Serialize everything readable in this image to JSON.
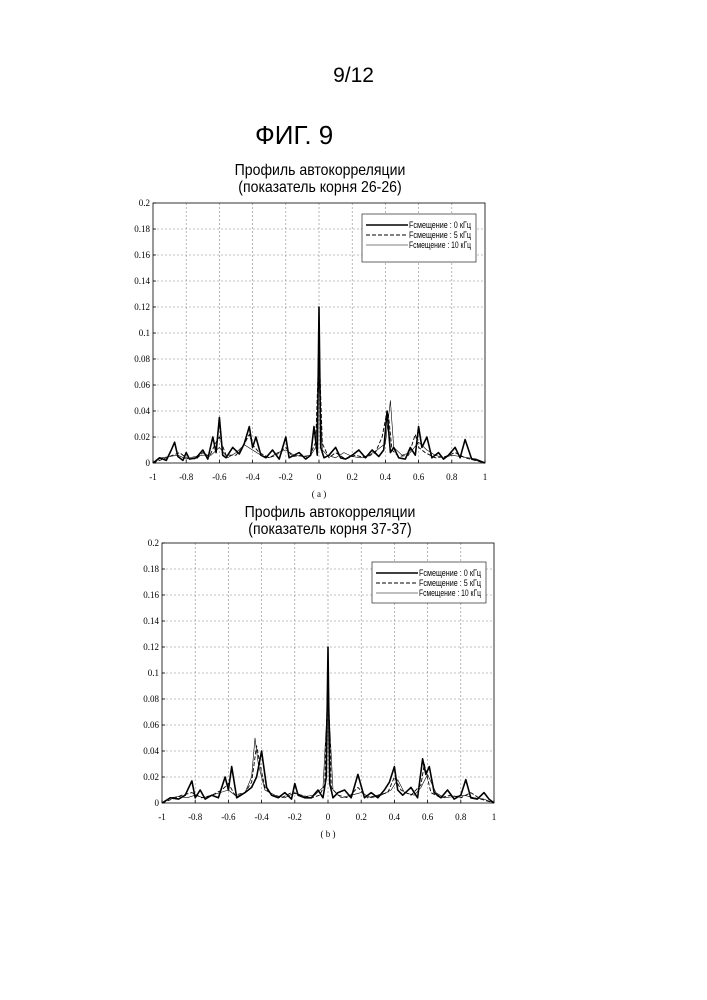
{
  "page": {
    "number": "9/12",
    "figure": "ФИГ. 9"
  },
  "chart_data": [
    {
      "type": "line",
      "title": "Профиль автокорреляции",
      "subtitle": "(показатель корня 26-26)",
      "panel_label": "( a )",
      "xlim": [
        -1,
        1
      ],
      "ylim": [
        0,
        0.2
      ],
      "x_ticks": [
        "-1",
        "-0.8",
        "-0.6",
        "-0.4",
        "-0.2",
        "0",
        "0.2",
        "0.4",
        "0.6",
        "0.8",
        "1"
      ],
      "y_ticks": [
        "0",
        "0.02",
        "0.04",
        "0.06",
        "0.08",
        "0.1",
        "0.12",
        "0.14",
        "0.16",
        "0.18",
        "0.2"
      ],
      "grid": true,
      "legend_position": "top-right",
      "series": [
        {
          "name": "Fсмещение : 0 кГц",
          "style": "solid-thick",
          "x": [
            -1,
            -0.96,
            -0.92,
            -0.89,
            -0.87,
            -0.85,
            -0.82,
            -0.8,
            -0.78,
            -0.74,
            -0.7,
            -0.67,
            -0.64,
            -0.62,
            -0.6,
            -0.58,
            -0.56,
            -0.52,
            -0.48,
            -0.45,
            -0.42,
            -0.4,
            -0.38,
            -0.35,
            -0.32,
            -0.28,
            -0.24,
            -0.2,
            -0.18,
            -0.15,
            -0.12,
            -0.08,
            -0.05,
            -0.03,
            -0.01,
            0,
            0.01,
            0.03,
            0.06,
            0.1,
            0.13,
            0.16,
            0.2,
            0.24,
            0.28,
            0.32,
            0.36,
            0.39,
            0.41,
            0.43,
            0.45,
            0.48,
            0.52,
            0.55,
            0.58,
            0.6,
            0.62,
            0.65,
            0.68,
            0.72,
            0.75,
            0.78,
            0.82,
            0.85,
            0.88,
            0.92,
            0.96,
            1
          ],
          "y": [
            0,
            0.004,
            0.002,
            0.01,
            0.016,
            0.005,
            0.002,
            0.008,
            0.003,
            0.004,
            0.01,
            0.003,
            0.02,
            0.008,
            0.035,
            0.006,
            0.004,
            0.012,
            0.007,
            0.015,
            0.028,
            0.012,
            0.02,
            0.006,
            0.004,
            0.01,
            0.003,
            0.02,
            0.004,
            0.006,
            0.008,
            0.003,
            0.006,
            0.028,
            0.006,
            0.12,
            0.012,
            0.004,
            0.006,
            0.012,
            0.004,
            0.003,
            0.006,
            0.01,
            0.004,
            0.01,
            0.005,
            0.01,
            0.04,
            0.008,
            0.012,
            0.004,
            0.003,
            0.012,
            0.006,
            0.028,
            0.012,
            0.02,
            0.004,
            0.008,
            0.003,
            0.006,
            0.012,
            0.004,
            0.018,
            0.003,
            0.002,
            0
          ]
        },
        {
          "name": "Fсмещение : 5 кГц",
          "style": "dashed",
          "x": [
            -1,
            -0.94,
            -0.88,
            -0.84,
            -0.8,
            -0.74,
            -0.7,
            -0.66,
            -0.62,
            -0.6,
            -0.56,
            -0.5,
            -0.46,
            -0.42,
            -0.4,
            -0.36,
            -0.3,
            -0.26,
            -0.2,
            -0.16,
            -0.1,
            -0.06,
            -0.02,
            0,
            0.02,
            0.06,
            0.1,
            0.16,
            0.22,
            0.28,
            0.34,
            0.38,
            0.41,
            0.42,
            0.44,
            0.48,
            0.54,
            0.58,
            0.6,
            0.64,
            0.7,
            0.76,
            0.82,
            0.88,
            0.94,
            1
          ],
          "y": [
            0,
            0.003,
            0.006,
            0.008,
            0.004,
            0.003,
            0.008,
            0.005,
            0.016,
            0.02,
            0.006,
            0.006,
            0.012,
            0.022,
            0.014,
            0.008,
            0.004,
            0.006,
            0.012,
            0.005,
            0.006,
            0.004,
            0.016,
            0.09,
            0.015,
            0.004,
            0.008,
            0.003,
            0.006,
            0.004,
            0.008,
            0.02,
            0.04,
            0.035,
            0.01,
            0.005,
            0.006,
            0.022,
            0.012,
            0.008,
            0.004,
            0.005,
            0.008,
            0.004,
            0.002,
            0
          ]
        },
        {
          "name": "Fсмещение : 10 кГц",
          "style": "solid-thin",
          "x": [
            -1,
            -0.95,
            -0.9,
            -0.85,
            -0.8,
            -0.75,
            -0.7,
            -0.65,
            -0.6,
            -0.55,
            -0.5,
            -0.45,
            -0.4,
            -0.35,
            -0.3,
            -0.25,
            -0.2,
            -0.15,
            -0.1,
            -0.05,
            -0.02,
            0,
            0.02,
            0.05,
            0.1,
            0.15,
            0.2,
            0.25,
            0.3,
            0.35,
            0.4,
            0.43,
            0.45,
            0.5,
            0.55,
            0.6,
            0.65,
            0.7,
            0.75,
            0.8,
            0.85,
            0.9,
            0.95,
            1
          ],
          "y": [
            0,
            0.004,
            0.005,
            0.006,
            0.003,
            0.005,
            0.006,
            0.006,
            0.012,
            0.004,
            0.008,
            0.014,
            0.01,
            0.006,
            0.004,
            0.008,
            0.01,
            0.006,
            0.005,
            0.006,
            0.012,
            0.065,
            0.01,
            0.006,
            0.004,
            0.008,
            0.005,
            0.004,
            0.006,
            0.01,
            0.015,
            0.048,
            0.012,
            0.006,
            0.008,
            0.016,
            0.01,
            0.006,
            0.004,
            0.006,
            0.005,
            0.004,
            0.003,
            0
          ]
        }
      ]
    },
    {
      "type": "line",
      "title": "Профиль автокорреляции",
      "subtitle": "(показатель корня 37-37)",
      "panel_label": "( b )",
      "xlim": [
        -1,
        1
      ],
      "ylim": [
        0,
        0.2
      ],
      "x_ticks": [
        "-1",
        "-0.8",
        "-0.6",
        "-0.4",
        "-0.2",
        "0",
        "0.2",
        "0.4",
        "0.6",
        "0.8",
        "1"
      ],
      "y_ticks": [
        "0",
        "0.02",
        "0.04",
        "0.06",
        "0.08",
        "0.1",
        "0.12",
        "0.14",
        "0.16",
        "0.18",
        "0.2"
      ],
      "grid": true,
      "legend_position": "top-right",
      "series": [
        {
          "name": "Fсмещение : 0 кГц",
          "style": "solid-thick",
          "x": [
            -1,
            -0.95,
            -0.9,
            -0.86,
            -0.82,
            -0.8,
            -0.77,
            -0.74,
            -0.7,
            -0.66,
            -0.62,
            -0.6,
            -0.58,
            -0.55,
            -0.5,
            -0.46,
            -0.43,
            -0.4,
            -0.37,
            -0.34,
            -0.3,
            -0.26,
            -0.22,
            -0.2,
            -0.18,
            -0.14,
            -0.1,
            -0.06,
            -0.03,
            -0.01,
            0,
            0.01,
            0.03,
            0.06,
            0.1,
            0.14,
            0.18,
            0.22,
            0.26,
            0.3,
            0.34,
            0.37,
            0.4,
            0.42,
            0.45,
            0.5,
            0.54,
            0.57,
            0.59,
            0.61,
            0.64,
            0.68,
            0.72,
            0.76,
            0.8,
            0.83,
            0.86,
            0.9,
            0.94,
            0.97,
            1
          ],
          "y": [
            0,
            0.004,
            0.003,
            0.006,
            0.017,
            0.004,
            0.01,
            0.003,
            0.006,
            0.004,
            0.02,
            0.01,
            0.028,
            0.004,
            0.008,
            0.012,
            0.02,
            0.04,
            0.012,
            0.006,
            0.004,
            0.008,
            0.003,
            0.015,
            0.006,
            0.004,
            0.004,
            0.01,
            0.004,
            0.02,
            0.12,
            0.015,
            0.004,
            0.008,
            0.01,
            0.004,
            0.022,
            0.004,
            0.008,
            0.004,
            0.01,
            0.016,
            0.028,
            0.01,
            0.006,
            0.012,
            0.004,
            0.034,
            0.022,
            0.028,
            0.008,
            0.004,
            0.01,
            0.003,
            0.006,
            0.018,
            0.004,
            0.003,
            0.008,
            0.003,
            0
          ]
        },
        {
          "name": "Fсмещение : 5 кГц",
          "style": "dashed",
          "x": [
            -1,
            -0.94,
            -0.88,
            -0.82,
            -0.76,
            -0.7,
            -0.64,
            -0.6,
            -0.56,
            -0.5,
            -0.46,
            -0.43,
            -0.41,
            -0.38,
            -0.34,
            -0.28,
            -0.22,
            -0.16,
            -0.1,
            -0.05,
            -0.02,
            0,
            0.02,
            0.06,
            0.12,
            0.18,
            0.24,
            0.3,
            0.36,
            0.4,
            0.44,
            0.5,
            0.56,
            0.58,
            0.62,
            0.68,
            0.74,
            0.8,
            0.86,
            0.92,
            1
          ],
          "y": [
            0,
            0.003,
            0.006,
            0.008,
            0.004,
            0.006,
            0.01,
            0.015,
            0.006,
            0.008,
            0.016,
            0.044,
            0.03,
            0.012,
            0.006,
            0.004,
            0.008,
            0.006,
            0.004,
            0.006,
            0.014,
            0.1,
            0.012,
            0.006,
            0.004,
            0.012,
            0.004,
            0.006,
            0.008,
            0.02,
            0.01,
            0.006,
            0.014,
            0.03,
            0.008,
            0.004,
            0.006,
            0.004,
            0.008,
            0.003,
            0
          ]
        },
        {
          "name": "Fсмещение : 10 кГц",
          "style": "solid-thin",
          "x": [
            -1,
            -0.95,
            -0.9,
            -0.85,
            -0.8,
            -0.75,
            -0.7,
            -0.65,
            -0.6,
            -0.55,
            -0.5,
            -0.46,
            -0.44,
            -0.42,
            -0.38,
            -0.32,
            -0.26,
            -0.2,
            -0.14,
            -0.08,
            -0.03,
            0,
            0.03,
            0.08,
            0.14,
            0.2,
            0.26,
            0.32,
            0.38,
            0.42,
            0.46,
            0.52,
            0.56,
            0.6,
            0.65,
            0.7,
            0.76,
            0.82,
            0.88,
            0.94,
            1
          ],
          "y": [
            0,
            0.004,
            0.005,
            0.004,
            0.006,
            0.004,
            0.006,
            0.008,
            0.01,
            0.005,
            0.008,
            0.02,
            0.05,
            0.03,
            0.01,
            0.006,
            0.004,
            0.008,
            0.005,
            0.006,
            0.012,
            0.085,
            0.01,
            0.004,
            0.006,
            0.008,
            0.004,
            0.006,
            0.01,
            0.018,
            0.008,
            0.006,
            0.012,
            0.022,
            0.008,
            0.004,
            0.005,
            0.006,
            0.004,
            0.003,
            0
          ]
        }
      ]
    }
  ]
}
